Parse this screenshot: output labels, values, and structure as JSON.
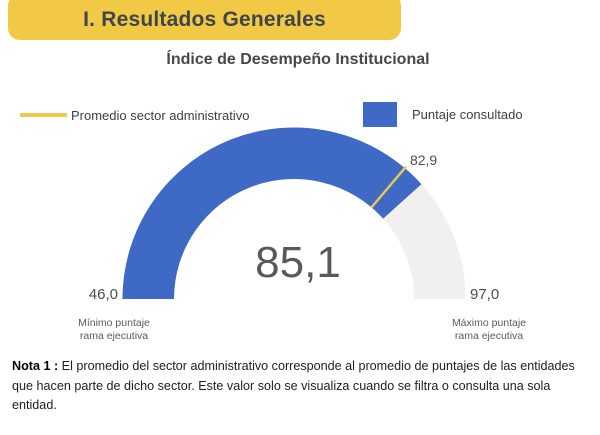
{
  "header": {
    "title": "I. Resultados Generales",
    "bg_color": "#F1C945",
    "text_color": "#3F444D"
  },
  "legend": {
    "items": [
      {
        "label": "Promedio sector administrativo",
        "swatch": "line",
        "color": "#EFC94C"
      },
      {
        "label": "Puntaje consultado",
        "swatch": "square",
        "color": "#3E69C5"
      }
    ]
  },
  "chart_data": {
    "type": "gauge",
    "title": "Índice de Desempeño Institucional",
    "min": 46.0,
    "max": 97.0,
    "value": 85.1,
    "marker_value": 82.9,
    "value_label": "85,1",
    "min_label": "46,0",
    "max_label": "97,0",
    "marker_label": "82,9",
    "min_caption": [
      "Mínimo puntaje",
      "rama ejecutiva"
    ],
    "max_caption": [
      "Máximo puntaje",
      "rama ejecutiva"
    ],
    "colors": {
      "value_arc": "#3E69C5",
      "rest_arc": "#F1F0EE",
      "marker_line": "#EFC94C"
    }
  },
  "note": {
    "label": "Nota 1 :",
    "text": " El promedio del sector administrativo corresponde al promedio de puntajes de las entidades que hacen parte de dicho sector. Este valor solo se visualiza cuando se filtra o consulta una sola entidad."
  }
}
